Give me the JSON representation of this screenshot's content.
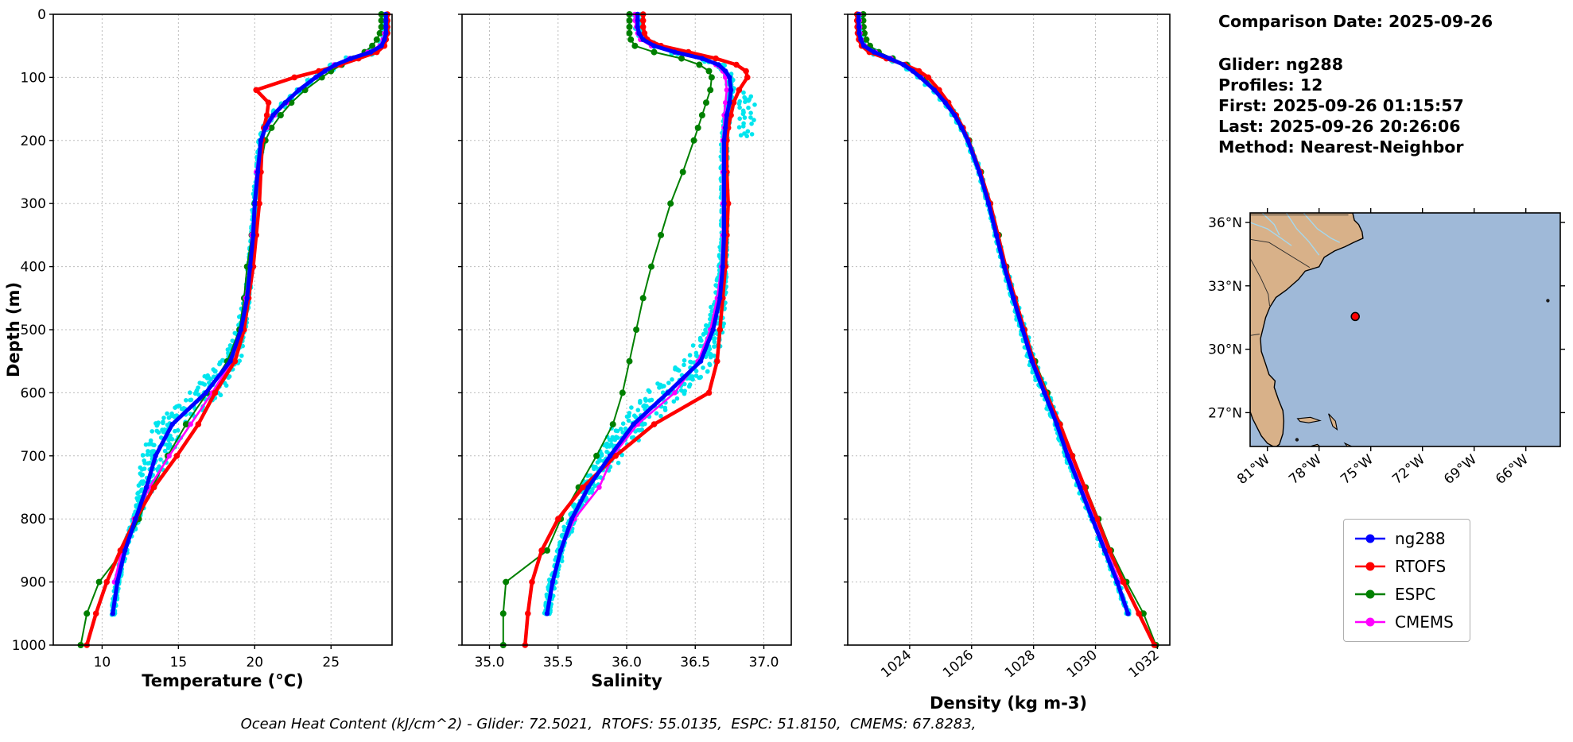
{
  "info_panel": {
    "comparison_date": "Comparison Date: 2025-09-26",
    "glider": "Glider: ng288",
    "profiles": "Profiles: 12",
    "first": "First: 2025-09-26 01:15:57",
    "last": "Last: 2025-09-26 20:26:06",
    "method": "Method: Nearest-Neighbor"
  },
  "caption": "Ocean Heat Content (kJ/cm^2) - Glider: 72.5021,  RTOFS: 55.0135,  ESPC: 51.8150,  CMEMS: 67.8283,",
  "legend": {
    "entries": [
      {
        "label": "ng288",
        "color": "#0000ff"
      },
      {
        "label": "RTOFS",
        "color": "#ff0000"
      },
      {
        "label": "ESPC",
        "color": "#008000"
      },
      {
        "label": "CMEMS",
        "color": "#ff00ff"
      }
    ]
  },
  "map": {
    "extent": {
      "lon_min": -82.0,
      "lon_max": -64.0,
      "lat_min": 25.4,
      "lat_max": 36.45
    },
    "lat_ticks": [
      {
        "label": "36°N",
        "value": 36
      },
      {
        "label": "33°N",
        "value": 33
      },
      {
        "label": "30°N",
        "value": 30
      },
      {
        "label": "27°N",
        "value": 27
      }
    ],
    "lon_ticks": [
      {
        "label": "81°W",
        "value": -81
      },
      {
        "label": "78°W",
        "value": -78
      },
      {
        "label": "75°W",
        "value": -75
      },
      {
        "label": "72°W",
        "value": -72
      },
      {
        "label": "69°W",
        "value": -69
      },
      {
        "label": "66°W",
        "value": -66
      }
    ],
    "marker": {
      "lon": -75.9,
      "lat": 31.55,
      "color": "#ff0000",
      "edge": "#000000"
    },
    "colors": {
      "land": "#d8b189",
      "ocean": "#9fb9d8",
      "river": "#a5d8ee",
      "coast": "#000000",
      "border": "#2a2a2a"
    },
    "land_polygon": [
      [
        -82.0,
        36.45
      ],
      [
        -76.05,
        36.45
      ],
      [
        -75.95,
        36.1
      ],
      [
        -75.7,
        35.9
      ],
      [
        -75.5,
        35.55
      ],
      [
        -75.45,
        35.25
      ],
      [
        -76.0,
        35.05
      ],
      [
        -76.5,
        34.85
      ],
      [
        -77.1,
        34.65
      ],
      [
        -77.7,
        34.35
      ],
      [
        -78.0,
        33.9
      ],
      [
        -78.8,
        33.7
      ],
      [
        -79.2,
        33.3
      ],
      [
        -79.9,
        32.8
      ],
      [
        -80.5,
        32.45
      ],
      [
        -80.85,
        32.0
      ],
      [
        -81.1,
        31.5
      ],
      [
        -81.25,
        31.0
      ],
      [
        -81.4,
        30.5
      ],
      [
        -81.35,
        29.9
      ],
      [
        -81.1,
        29.3
      ],
      [
        -80.9,
        28.8
      ],
      [
        -80.55,
        28.5
      ],
      [
        -80.6,
        28.2
      ],
      [
        -80.35,
        27.6
      ],
      [
        -80.1,
        27.1
      ],
      [
        -80.05,
        26.6
      ],
      [
        -80.1,
        26.0
      ],
      [
        -80.3,
        25.5
      ],
      [
        -80.55,
        25.35
      ],
      [
        -81.0,
        25.55
      ],
      [
        -81.35,
        25.9
      ],
      [
        -81.6,
        26.3
      ],
      [
        -81.85,
        26.7
      ],
      [
        -82.0,
        27.05
      ]
    ],
    "borders": [
      [
        [
          -82.0,
          36.35
        ],
        [
          -76.3,
          36.35
        ]
      ],
      [
        [
          -82.0,
          35.2
        ],
        [
          -80.9,
          35.05
        ],
        [
          -78.55,
          33.87
        ]
      ],
      [
        [
          -82.0,
          34.3
        ],
        [
          -81.4,
          33.4
        ],
        [
          -80.95,
          32.6
        ],
        [
          -80.87,
          32.05
        ]
      ],
      [
        [
          -82.0,
          30.65
        ],
        [
          -81.45,
          30.72
        ]
      ]
    ],
    "rivers": [
      [
        [
          -82.0,
          36.0
        ],
        [
          -81.0,
          35.7
        ],
        [
          -80.2,
          35.25
        ],
        [
          -79.6,
          34.9
        ]
      ],
      [
        [
          -79.9,
          36.45
        ],
        [
          -79.3,
          35.7
        ],
        [
          -78.6,
          35.1
        ],
        [
          -78.0,
          34.45
        ]
      ],
      [
        [
          -78.9,
          36.45
        ],
        [
          -78.1,
          35.7
        ],
        [
          -77.3,
          35.25
        ],
        [
          -76.8,
          35.05
        ]
      ],
      [
        [
          -81.3,
          36.45
        ],
        [
          -80.6,
          35.9
        ],
        [
          -80.3,
          35.4
        ]
      ]
    ],
    "islands": [
      [
        [
          -79.25,
          26.72
        ],
        [
          -78.5,
          26.78
        ],
        [
          -77.95,
          26.62
        ],
        [
          -78.6,
          26.52
        ],
        [
          -79.1,
          26.58
        ]
      ],
      [
        [
          -77.45,
          26.95
        ],
        [
          -77.05,
          26.6
        ],
        [
          -76.95,
          26.2
        ],
        [
          -77.2,
          26.35
        ],
        [
          -77.35,
          26.7
        ]
      ],
      [
        [
          -78.45,
          25.42
        ],
        [
          -78.1,
          25.5
        ],
        [
          -77.95,
          25.4
        ]
      ],
      [
        [
          -76.5,
          25.55
        ],
        [
          -76.15,
          25.42
        ],
        [
          -76.35,
          25.38
        ]
      ]
    ],
    "island_dots": [
      {
        "name": "bimini",
        "lon": -79.28,
        "lat": 25.72
      },
      {
        "name": "bermuda",
        "lon": -64.72,
        "lat": 32.3
      }
    ]
  },
  "chart_data": {
    "type": "line",
    "profile_orientation": "depth-vertical",
    "depth_label": "Depth (m)",
    "depth_lim": [
      0,
      1000
    ],
    "depth_ticks": [
      0,
      100,
      200,
      300,
      400,
      500,
      600,
      700,
      800,
      900,
      1000
    ],
    "grid": true,
    "depths": [
      0,
      10,
      20,
      30,
      40,
      50,
      60,
      70,
      80,
      90,
      100,
      120,
      140,
      160,
      180,
      200,
      250,
      300,
      350,
      400,
      450,
      500,
      550,
      600,
      650,
      700,
      750,
      800,
      850,
      900,
      950,
      1000
    ],
    "series_names": [
      "ng288",
      "RTOFS",
      "ESPC",
      "CMEMS"
    ],
    "series_colors": {
      "ng288": "#0000ff",
      "RTOFS": "#ff0000",
      "ESPC": "#008000",
      "CMEMS": "#ff00ff",
      "observations": "#00e5ee"
    },
    "observations": {
      "name": "glider raw profiles",
      "profiles": 12,
      "max_depth": 950
    },
    "plots": [
      {
        "id": "temperature",
        "xlabel": "Temperature (°C)",
        "xlim": [
          6.8,
          29.0
        ],
        "xticks": [
          {
            "v": 10,
            "label": "10"
          },
          {
            "v": 15,
            "label": "15"
          },
          {
            "v": 20,
            "label": "20"
          },
          {
            "v": 25,
            "label": "25"
          }
        ],
        "rotate_xtick_labels": false,
        "obs_jitter": {
          "base": 0.15,
          "peak": 7,
          "center": 640,
          "width": 110
        },
        "series": [
          {
            "name": "ng288",
            "values": [
              28.6,
              28.6,
              28.6,
              28.6,
              28.5,
              28.3,
              27.6,
              26.3,
              25.3,
              24.6,
              24.0,
              22.9,
              22.0,
              21.2,
              20.7,
              20.4,
              20.2,
              20.0,
              19.9,
              19.7,
              19.5,
              19.1,
              18.4,
              16.8,
              14.6,
              13.5,
              12.9,
              12.2,
              11.5,
              11.0,
              10.7,
              null
            ]
          },
          {
            "name": "RTOFS",
            "values": [
              28.7,
              28.7,
              28.7,
              28.7,
              28.6,
              28.5,
              28.0,
              26.8,
              25.6,
              24.2,
              22.6,
              20.1,
              20.9,
              20.8,
              20.6,
              20.5,
              20.4,
              20.3,
              20.1,
              19.9,
              19.6,
              19.3,
              18.7,
              17.4,
              16.3,
              14.9,
              13.4,
              12.2,
              11.2,
              10.3,
              9.6,
              9.0
            ]
          },
          {
            "name": "ESPC",
            "values": [
              28.3,
              28.3,
              28.3,
              28.2,
              28.0,
              27.7,
              27.2,
              26.5,
              25.7,
              25.0,
              24.4,
              23.3,
              22.4,
              21.7,
              21.1,
              20.7,
              20.3,
              20.0,
              19.8,
              19.5,
              19.3,
              19.0,
              18.2,
              16.9,
              15.5,
              14.3,
              13.3,
              12.4,
              11.4,
              9.8,
              9.0,
              8.6
            ]
          },
          {
            "name": "CMEMS",
            "values": [
              28.6,
              28.6,
              28.6,
              28.5,
              28.4,
              28.2,
              27.4,
              26.2,
              25.2,
              24.5,
              24.0,
              22.9,
              22.1,
              21.3,
              20.8,
              20.4,
              20.1,
              20.0,
              19.8,
              19.7,
              19.4,
              19.1,
              18.5,
              17.2,
              15.8,
              14.4,
              13.1,
              12.1,
              11.3,
              10.8,
              null,
              null
            ]
          }
        ]
      },
      {
        "id": "salinity",
        "xlabel": "Salinity",
        "xlim": [
          34.8,
          37.2
        ],
        "xticks": [
          {
            "v": 35.0,
            "label": "35.0"
          },
          {
            "v": 35.5,
            "label": "35.5"
          },
          {
            "v": 36.0,
            "label": "36.0"
          },
          {
            "v": 36.5,
            "label": "36.5"
          },
          {
            "v": 37.0,
            "label": "37.0"
          }
        ],
        "rotate_xtick_labels": false,
        "obs_jitter": {
          "base": 0.025,
          "peak": 5,
          "center": 610,
          "width": 120
        },
        "obs_cluster": {
          "depth_range": [
            120,
            200
          ],
          "value": 36.88,
          "spread": 0.06,
          "count": 30
        },
        "series": [
          {
            "name": "ng288",
            "values": [
              36.08,
              36.08,
              36.08,
              36.09,
              36.12,
              36.2,
              36.35,
              36.55,
              36.67,
              36.72,
              36.75,
              36.76,
              36.75,
              36.73,
              36.72,
              36.71,
              36.71,
              36.71,
              36.71,
              36.7,
              36.68,
              36.63,
              36.54,
              36.3,
              36.05,
              35.88,
              35.72,
              35.6,
              35.52,
              35.46,
              35.42,
              null
            ]
          },
          {
            "name": "RTOFS",
            "values": [
              36.12,
              36.12,
              36.12,
              36.13,
              36.15,
              36.25,
              36.45,
              36.65,
              36.8,
              36.87,
              36.88,
              36.82,
              36.78,
              36.76,
              36.74,
              36.73,
              36.73,
              36.74,
              36.73,
              36.72,
              36.7,
              36.68,
              36.66,
              36.6,
              36.2,
              35.92,
              35.68,
              35.5,
              35.38,
              35.31,
              35.28,
              35.26
            ]
          },
          {
            "name": "ESPC",
            "values": [
              36.02,
              36.02,
              36.02,
              36.02,
              36.03,
              36.06,
              36.2,
              36.4,
              36.53,
              36.6,
              36.62,
              36.61,
              36.58,
              36.55,
              36.52,
              36.49,
              36.41,
              36.32,
              36.25,
              36.18,
              36.12,
              36.07,
              36.02,
              35.97,
              35.9,
              35.78,
              35.65,
              35.52,
              35.42,
              35.12,
              35.1,
              35.1
            ]
          },
          {
            "name": "CMEMS",
            "values": [
              36.06,
              36.06,
              36.07,
              36.08,
              36.1,
              36.18,
              36.35,
              36.55,
              36.65,
              36.7,
              36.72,
              36.73,
              36.72,
              36.71,
              36.71,
              36.7,
              36.7,
              36.7,
              36.7,
              36.69,
              36.66,
              36.61,
              36.52,
              36.35,
              36.08,
              35.9,
              35.8,
              35.62,
              35.52,
              35.46,
              null,
              null
            ]
          }
        ]
      },
      {
        "id": "density",
        "xlabel": "Density (kg m-3)",
        "xlim": [
          1022.0,
          1032.4
        ],
        "xticks": [
          {
            "v": 1024,
            "label": "1024"
          },
          {
            "v": 1026,
            "label": "1026"
          },
          {
            "v": 1028,
            "label": "1028"
          },
          {
            "v": 1030,
            "label": "1030"
          },
          {
            "v": 1032,
            "label": "1032"
          }
        ],
        "rotate_xtick_labels": true,
        "obs_jitter": {
          "base": 0.05,
          "peak": 1.5,
          "center": 600,
          "width": 150
        },
        "series": [
          {
            "name": "ng288",
            "values": [
              1022.35,
              1022.35,
              1022.36,
              1022.37,
              1022.42,
              1022.52,
              1022.85,
              1023.35,
              1023.8,
              1024.1,
              1024.35,
              1024.8,
              1025.15,
              1025.45,
              1025.68,
              1025.88,
              1026.25,
              1026.55,
              1026.8,
              1027.05,
              1027.35,
              1027.65,
              1027.95,
              1028.35,
              1028.75,
              1029.1,
              1029.5,
              1029.9,
              1030.3,
              1030.7,
              1031.05,
              null
            ]
          },
          {
            "name": "RTOFS",
            "values": [
              1022.3,
              1022.3,
              1022.31,
              1022.32,
              1022.36,
              1022.45,
              1022.7,
              1023.25,
              1023.85,
              1024.3,
              1024.6,
              1024.95,
              1025.25,
              1025.5,
              1025.72,
              1025.9,
              1026.28,
              1026.6,
              1026.85,
              1027.1,
              1027.4,
              1027.7,
              1028.0,
              1028.4,
              1028.85,
              1029.25,
              1029.65,
              1030.05,
              1030.45,
              1030.9,
              1031.4,
              1031.9
            ]
          },
          {
            "name": "ESPC",
            "values": [
              1022.5,
              1022.5,
              1022.51,
              1022.54,
              1022.6,
              1022.72,
              1023.0,
              1023.45,
              1023.9,
              1024.2,
              1024.45,
              1024.85,
              1025.2,
              1025.48,
              1025.7,
              1025.92,
              1026.3,
              1026.6,
              1026.88,
              1027.12,
              1027.4,
              1027.7,
              1028.05,
              1028.45,
              1028.85,
              1029.25,
              1029.68,
              1030.1,
              1030.5,
              1031.0,
              1031.55,
              1031.95
            ]
          },
          {
            "name": "CMEMS",
            "values": [
              1022.38,
              1022.38,
              1022.39,
              1022.4,
              1022.44,
              1022.55,
              1022.9,
              1023.4,
              1023.82,
              1024.12,
              1024.38,
              1024.82,
              1025.18,
              1025.48,
              1025.7,
              1025.9,
              1026.26,
              1026.56,
              1026.82,
              1027.08,
              1027.38,
              1027.68,
              1027.98,
              1028.4,
              1028.8,
              1029.15,
              1029.55,
              1029.95,
              1030.35,
              1030.78,
              null,
              null
            ]
          }
        ]
      }
    ]
  }
}
